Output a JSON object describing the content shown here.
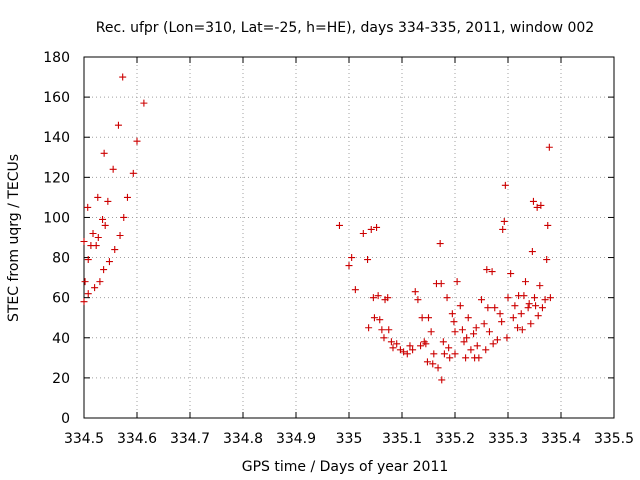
{
  "chart_data": {
    "type": "scatter",
    "title": "Rec. ufpr (Lon=310, Lat=-25, h=HE), days 334-335, 2011, window 002",
    "xlabel": "GPS time / Days of year 2011",
    "ylabel": "STEC from uqrg / TECUs",
    "xlim": [
      334.5,
      335.5
    ],
    "ylim": [
      0,
      180
    ],
    "x_ticks": [
      "334.5",
      "334.6",
      "334.7",
      "334.8",
      "334.9",
      "335",
      "335.1",
      "335.2",
      "335.3",
      "335.4",
      "335.5"
    ],
    "y_ticks": [
      "0",
      "20",
      "40",
      "60",
      "80",
      "100",
      "120",
      "140",
      "160",
      "180"
    ],
    "grid": true,
    "marker": "plus",
    "color": "#cc0000",
    "points": [
      [
        334.5,
        88
      ],
      [
        334.5,
        58
      ],
      [
        334.502,
        68
      ],
      [
        334.507,
        105
      ],
      [
        334.508,
        79
      ],
      [
        334.508,
        62
      ],
      [
        334.513,
        86
      ],
      [
        334.517,
        92
      ],
      [
        334.52,
        65
      ],
      [
        334.523,
        86
      ],
      [
        334.526,
        110
      ],
      [
        334.527,
        90
      ],
      [
        334.53,
        68
      ],
      [
        334.535,
        99
      ],
      [
        334.537,
        74
      ],
      [
        334.538,
        132
      ],
      [
        334.54,
        96
      ],
      [
        334.545,
        108
      ],
      [
        334.548,
        78
      ],
      [
        334.555,
        124
      ],
      [
        334.558,
        84
      ],
      [
        334.565,
        146
      ],
      [
        334.568,
        91
      ],
      [
        334.573,
        170
      ],
      [
        334.575,
        100
      ],
      [
        334.582,
        110
      ],
      [
        334.593,
        122
      ],
      [
        334.6,
        138
      ],
      [
        334.613,
        157
      ],
      [
        334.982,
        96
      ],
      [
        335.0,
        76
      ],
      [
        335.005,
        80
      ],
      [
        335.012,
        64
      ],
      [
        335.027,
        92
      ],
      [
        335.035,
        79
      ],
      [
        335.037,
        45
      ],
      [
        335.042,
        94
      ],
      [
        335.046,
        60
      ],
      [
        335.048,
        50
      ],
      [
        335.052,
        95
      ],
      [
        335.055,
        61
      ],
      [
        335.058,
        49
      ],
      [
        335.062,
        44
      ],
      [
        335.066,
        40
      ],
      [
        335.068,
        59
      ],
      [
        335.073,
        60
      ],
      [
        335.075,
        44
      ],
      [
        335.08,
        38
      ],
      [
        335.083,
        35
      ],
      [
        335.09,
        37
      ],
      [
        335.097,
        34
      ],
      [
        335.103,
        33
      ],
      [
        335.11,
        32
      ],
      [
        335.115,
        36
      ],
      [
        335.12,
        34
      ],
      [
        335.125,
        63
      ],
      [
        335.13,
        59
      ],
      [
        335.135,
        36
      ],
      [
        335.138,
        50
      ],
      [
        335.142,
        38
      ],
      [
        335.145,
        37
      ],
      [
        335.148,
        28
      ],
      [
        335.15,
        50
      ],
      [
        335.155,
        43
      ],
      [
        335.158,
        27
      ],
      [
        335.16,
        32
      ],
      [
        335.165,
        67
      ],
      [
        335.168,
        25
      ],
      [
        335.172,
        87
      ],
      [
        335.174,
        67
      ],
      [
        335.175,
        19
      ],
      [
        335.178,
        38
      ],
      [
        335.18,
        32
      ],
      [
        335.185,
        60
      ],
      [
        335.188,
        35
      ],
      [
        335.19,
        30
      ],
      [
        335.195,
        52
      ],
      [
        335.198,
        48
      ],
      [
        335.2,
        43
      ],
      [
        335.2,
        32
      ],
      [
        335.204,
        68
      ],
      [
        335.21,
        56
      ],
      [
        335.214,
        44
      ],
      [
        335.217,
        38
      ],
      [
        335.22,
        30
      ],
      [
        335.222,
        40
      ],
      [
        335.225,
        50
      ],
      [
        335.23,
        34
      ],
      [
        335.235,
        42
      ],
      [
        335.237,
        30
      ],
      [
        335.24,
        45
      ],
      [
        335.242,
        36
      ],
      [
        335.245,
        30
      ],
      [
        335.25,
        59
      ],
      [
        335.255,
        47
      ],
      [
        335.258,
        34
      ],
      [
        335.26,
        74
      ],
      [
        335.262,
        55
      ],
      [
        335.265,
        43
      ],
      [
        335.27,
        73
      ],
      [
        335.272,
        37
      ],
      [
        335.275,
        55
      ],
      [
        335.28,
        39
      ],
      [
        335.285,
        52
      ],
      [
        335.288,
        48
      ],
      [
        335.29,
        94
      ],
      [
        335.293,
        98
      ],
      [
        335.295,
        116
      ],
      [
        335.298,
        40
      ],
      [
        335.3,
        60
      ],
      [
        335.305,
        72
      ],
      [
        335.31,
        50
      ],
      [
        335.313,
        56
      ],
      [
        335.318,
        45
      ],
      [
        335.32,
        61
      ],
      [
        335.325,
        52
      ],
      [
        335.327,
        44
      ],
      [
        335.33,
        61
      ],
      [
        335.333,
        68
      ],
      [
        335.338,
        55
      ],
      [
        335.34,
        57
      ],
      [
        335.343,
        47
      ],
      [
        335.346,
        83
      ],
      [
        335.348,
        108
      ],
      [
        335.35,
        60
      ],
      [
        335.352,
        56
      ],
      [
        335.355,
        105
      ],
      [
        335.357,
        51
      ],
      [
        335.36,
        66
      ],
      [
        335.362,
        106
      ],
      [
        335.365,
        55
      ],
      [
        335.37,
        59
      ],
      [
        335.373,
        79
      ],
      [
        335.375,
        96
      ],
      [
        335.378,
        135
      ],
      [
        335.38,
        60
      ]
    ]
  }
}
